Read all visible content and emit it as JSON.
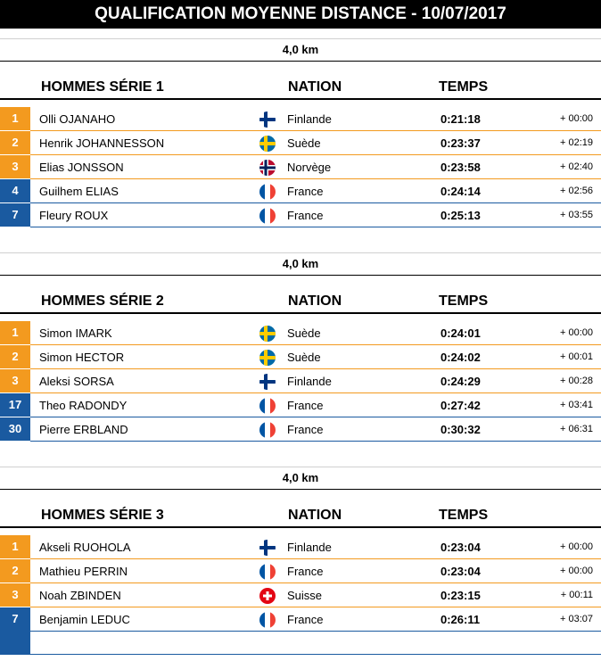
{
  "title": "QUALIFICATION MOYENNE DISTANCE - 10/07/2017",
  "headers": {
    "category_prefix": "HOMMES SÉRIE",
    "nation": "NATION",
    "time": "TEMPS"
  },
  "sections": [
    {
      "distance": "4,0 km",
      "category": "HOMMES SÉRIE 1",
      "rows": [
        {
          "rank": "1",
          "name": "Olli OJANAHO",
          "flag": "finland",
          "nation": "Finlande",
          "time": "0:21:18",
          "gap": "+ 00:00",
          "color": "orange"
        },
        {
          "rank": "2",
          "name": "Henrik JOHANNESSON",
          "flag": "sweden",
          "nation": "Suède",
          "time": "0:23:37",
          "gap": "+ 02:19",
          "color": "orange"
        },
        {
          "rank": "3",
          "name": "Elias JONSSON",
          "flag": "norway",
          "nation": "Norvège",
          "time": "0:23:58",
          "gap": "+ 02:40",
          "color": "orange"
        },
        {
          "rank": "4",
          "name": "Guilhem ELIAS",
          "flag": "france",
          "nation": "France",
          "time": "0:24:14",
          "gap": "+ 02:56",
          "color": "blue"
        },
        {
          "rank": "7",
          "name": "Fleury ROUX",
          "flag": "france",
          "nation": "France",
          "time": "0:25:13",
          "gap": "+ 03:55",
          "color": "blue"
        }
      ]
    },
    {
      "distance": "4,0 km",
      "category": "HOMMES SÉRIE 2",
      "rows": [
        {
          "rank": "1",
          "name": "Simon IMARK",
          "flag": "sweden",
          "nation": "Suède",
          "time": "0:24:01",
          "gap": "+ 00:00",
          "color": "orange"
        },
        {
          "rank": "2",
          "name": "Simon HECTOR",
          "flag": "sweden",
          "nation": "Suède",
          "time": "0:24:02",
          "gap": "+ 00:01",
          "color": "orange"
        },
        {
          "rank": "3",
          "name": "Aleksi SORSA",
          "flag": "finland",
          "nation": "Finlande",
          "time": "0:24:29",
          "gap": "+ 00:28",
          "color": "orange"
        },
        {
          "rank": "17",
          "name": "Theo RADONDY",
          "flag": "france",
          "nation": "France",
          "time": "0:27:42",
          "gap": "+ 03:41",
          "color": "blue"
        },
        {
          "rank": "30",
          "name": "Pierre ERBLAND",
          "flag": "france",
          "nation": "France",
          "time": "0:30:32",
          "gap": "+ 06:31",
          "color": "blue"
        }
      ]
    },
    {
      "distance": "4,0 km",
      "category": "HOMMES SÉRIE 3",
      "rows": [
        {
          "rank": "1",
          "name": "Akseli RUOHOLA",
          "flag": "finland",
          "nation": "Finlande",
          "time": "0:23:04",
          "gap": "+ 00:00",
          "color": "orange"
        },
        {
          "rank": "2",
          "name": "Mathieu PERRIN",
          "flag": "france",
          "nation": "France",
          "time": "0:23:04",
          "gap": "+ 00:00",
          "color": "orange"
        },
        {
          "rank": "3",
          "name": "Noah ZBINDEN",
          "flag": "switzerland",
          "nation": "Suisse",
          "time": "0:23:15",
          "gap": "+ 00:11",
          "color": "orange"
        },
        {
          "rank": "7",
          "name": "Benjamin LEDUC",
          "flag": "france",
          "nation": "France",
          "time": "0:26:11",
          "gap": "+ 03:07",
          "color": "blue"
        }
      ]
    }
  ]
}
